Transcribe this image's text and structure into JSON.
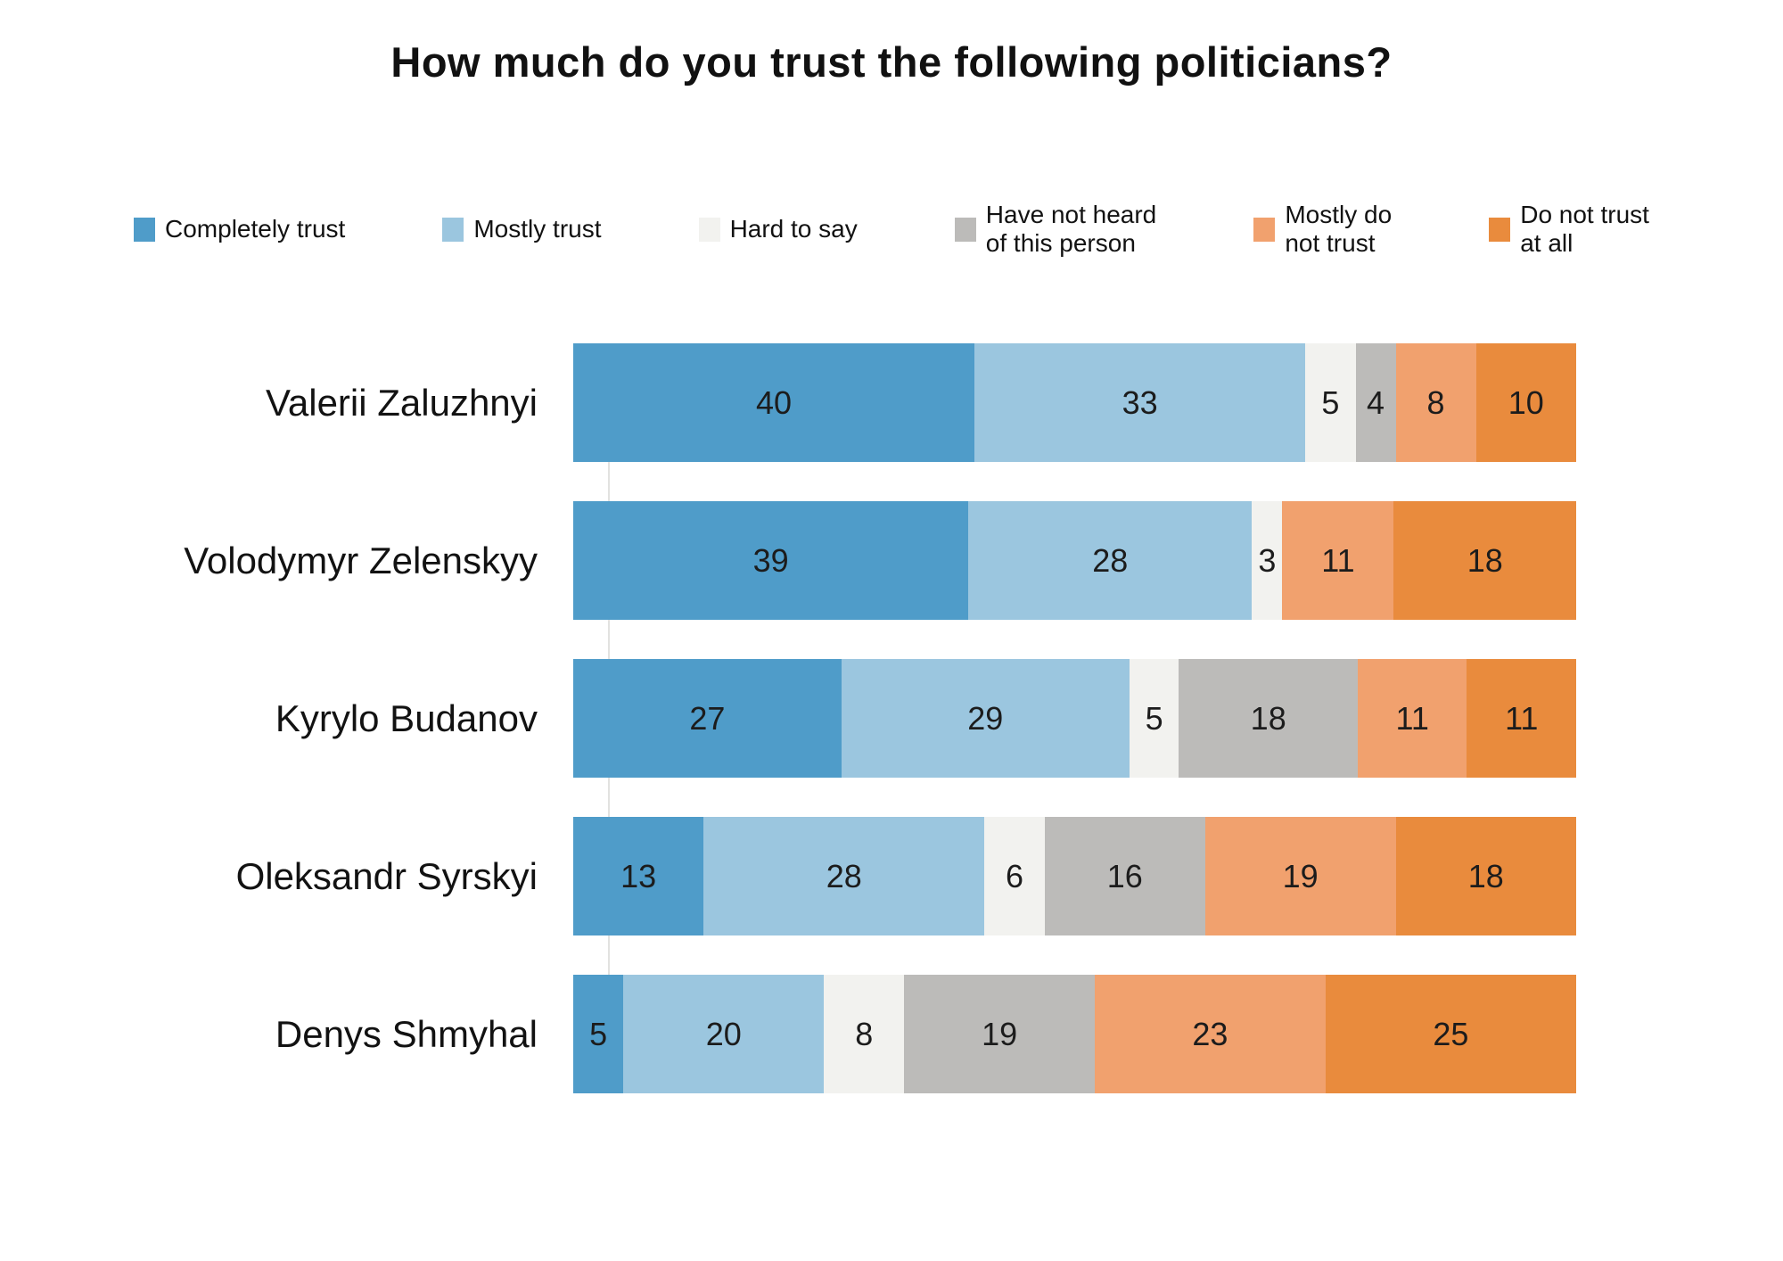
{
  "title": "How much do you trust the following politicians?",
  "legend": [
    {
      "label": "Completely trust",
      "color": "#4F9CC9"
    },
    {
      "label": "Mostly trust",
      "color": "#9BC6DF"
    },
    {
      "label": "Hard to say",
      "color": "#F2F2EF"
    },
    {
      "label": "Have not heard\nof this person",
      "color": "#BCBBB9"
    },
    {
      "label": "Mostly do\nnot trust",
      "color": "#F1A16E"
    },
    {
      "label": "Do not trust\nat all",
      "color": "#E98B3D"
    }
  ],
  "chart_data": {
    "type": "bar",
    "orientation": "horizontal",
    "stacked": true,
    "title": "How much do you trust the following politicians?",
    "value_format": "percent",
    "xlim": [
      0,
      100
    ],
    "grid": false,
    "legend_position": "top",
    "categories": [
      "Valerii Zaluzhnyi",
      "Volodymyr Zelenskyy",
      "Kyrylo Budanov",
      "Oleksandr Syrskyi",
      "Denys Shmyhal"
    ],
    "series": [
      {
        "name": "Completely trust",
        "color": "#4F9CC9",
        "values": [
          40,
          39,
          27,
          13,
          5
        ]
      },
      {
        "name": "Mostly trust",
        "color": "#9BC6DF",
        "values": [
          33,
          28,
          29,
          28,
          20
        ]
      },
      {
        "name": "Hard to say",
        "color": "#F2F2EF",
        "values": [
          5,
          3,
          5,
          6,
          8
        ]
      },
      {
        "name": "Have not heard of this person",
        "color": "#BCBBB9",
        "values": [
          4,
          0,
          18,
          16,
          19
        ]
      },
      {
        "name": "Mostly do not trust",
        "color": "#F1A16E",
        "values": [
          8,
          11,
          11,
          19,
          23
        ]
      },
      {
        "name": "Do not trust at all",
        "color": "#E98B3D",
        "values": [
          10,
          18,
          11,
          18,
          25
        ]
      }
    ]
  }
}
